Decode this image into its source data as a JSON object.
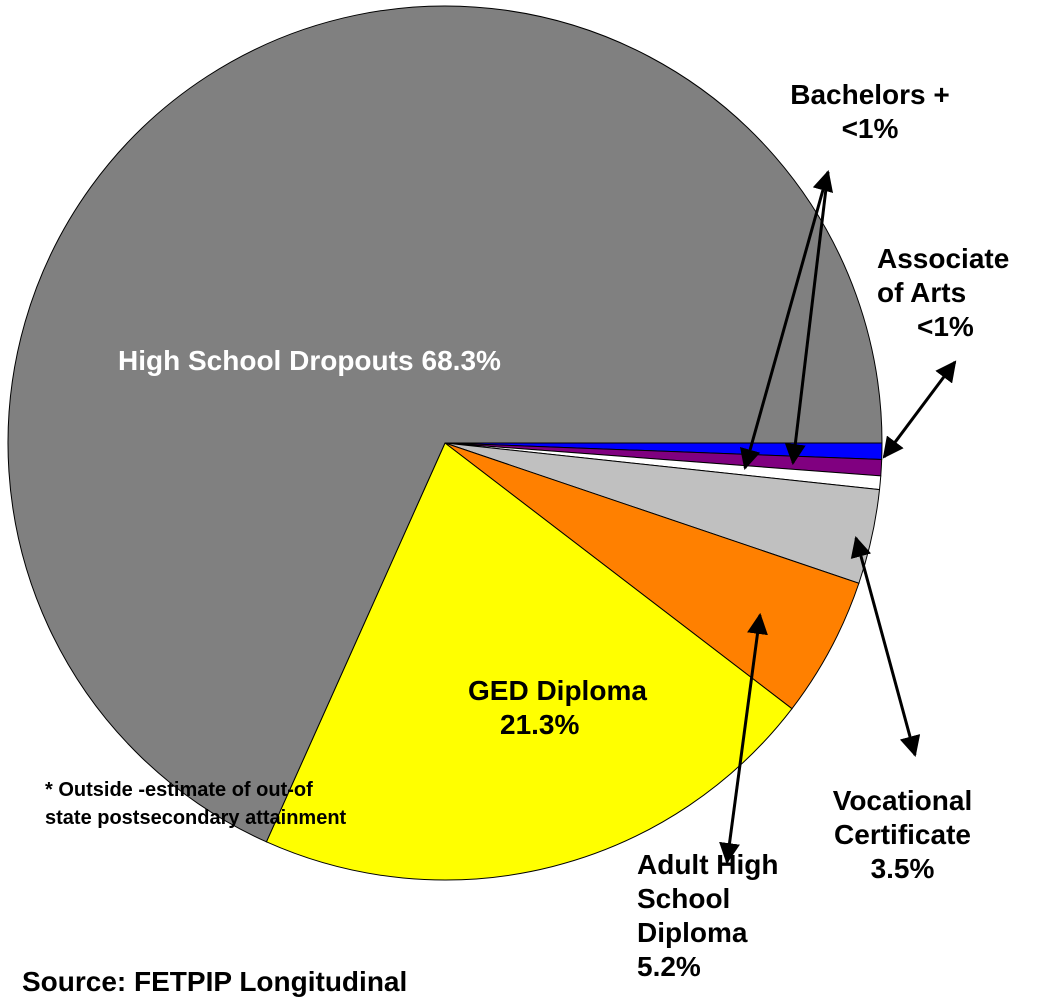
{
  "chart_data": {
    "type": "pie",
    "categories": [
      "Associate of Arts",
      "Bachelors +",
      null,
      "Vocational Certificate",
      "Adult High School Diploma",
      "GED Diploma",
      "High School Dropouts"
    ],
    "values": [
      0.6,
      0.6,
      0.5,
      3.5,
      5.2,
      21.3,
      68.3
    ],
    "value_labels": [
      "<1%",
      "<1%",
      null,
      "3.5%",
      "5.2%",
      "21.3%",
      "68.3%"
    ],
    "colors": [
      "#0000ff",
      "#800080",
      "#ffffff",
      "#c0c0c0",
      "#ff8000",
      "#ffff00",
      "#808080"
    ],
    "note": "* Outside -estimate of out-of state postsecondary attainment",
    "source": "Source: FETPIP Longitudinal"
  }
}
